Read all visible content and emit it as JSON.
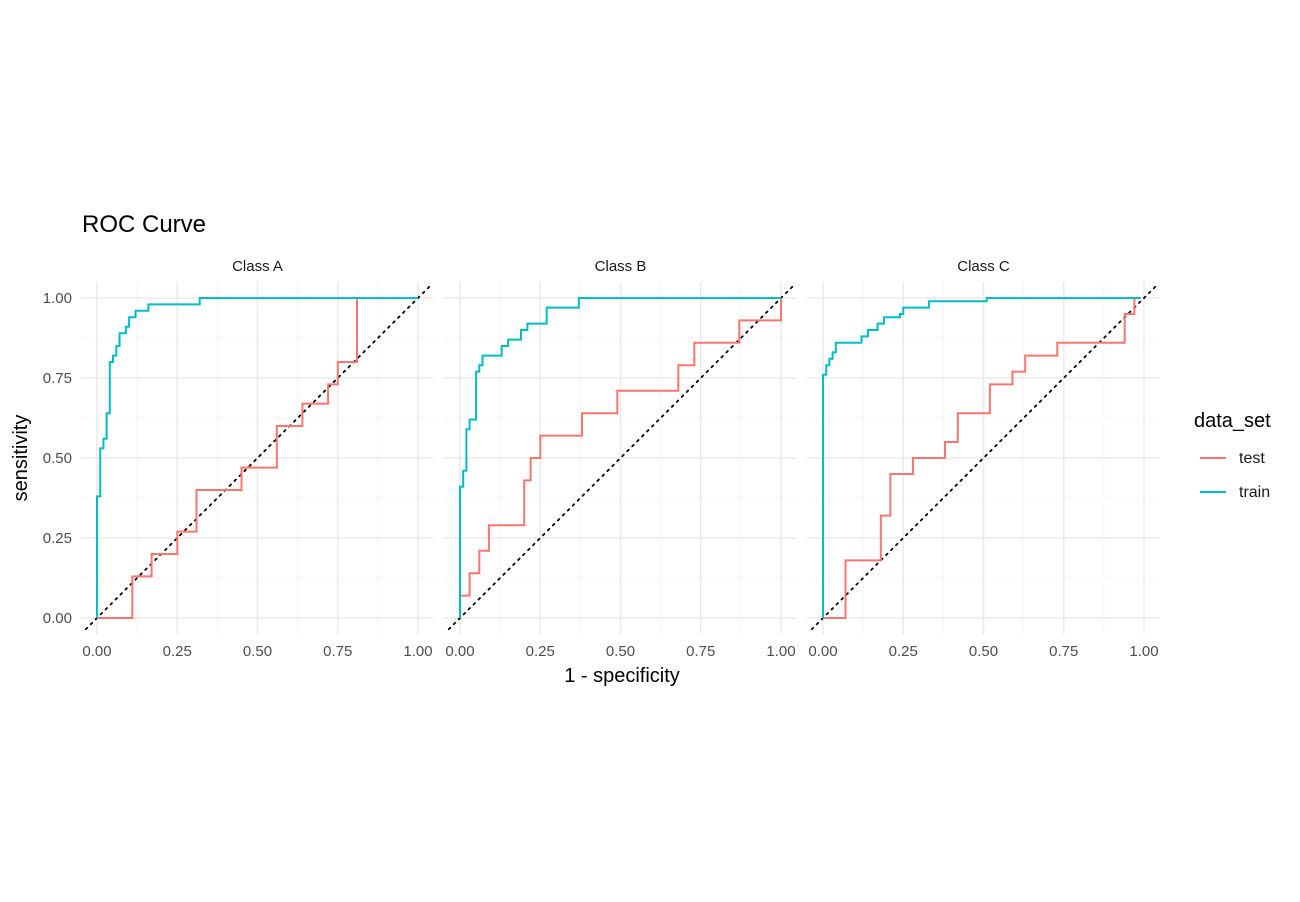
{
  "chart_data": {
    "type": "line",
    "title": "ROC Curve",
    "xlabel": "1 - specificity",
    "ylabel": "sensitivity",
    "xlim": [
      0,
      1
    ],
    "ylim": [
      0,
      1
    ],
    "x_ticks": [
      "0.00",
      "0.25",
      "0.50",
      "0.75",
      "1.00"
    ],
    "y_ticks": [
      "0.00",
      "0.25",
      "0.50",
      "0.75",
      "1.00"
    ],
    "grid": true,
    "reference_line": "diagonal y = x (dotted)",
    "legend": {
      "title": "data_set",
      "position": "right",
      "entries": [
        {
          "name": "test",
          "color": "#F8766D"
        },
        {
          "name": "train",
          "color": "#00BFC4"
        }
      ]
    },
    "panels": [
      {
        "label": "Class A",
        "series": [
          {
            "name": "train",
            "color": "#00BFC4",
            "x": [
              0,
              0,
              0.01,
              0.01,
              0.02,
              0.02,
              0.03,
              0.03,
              0.04,
              0.04,
              0.05,
              0.05,
              0.06,
              0.06,
              0.07,
              0.07,
              0.09,
              0.09,
              0.1,
              0.1,
              0.12,
              0.12,
              0.16,
              0.16,
              0.32,
              0.32,
              1.0
            ],
            "y": [
              0,
              0.38,
              0.38,
              0.53,
              0.53,
              0.56,
              0.56,
              0.64,
              0.64,
              0.8,
              0.8,
              0.82,
              0.82,
              0.85,
              0.85,
              0.89,
              0.89,
              0.91,
              0.91,
              0.94,
              0.94,
              0.96,
              0.96,
              0.98,
              0.98,
              1.0,
              1.0
            ]
          },
          {
            "name": "test",
            "color": "#F8766D",
            "x": [
              0,
              0.11,
              0.11,
              0.17,
              0.17,
              0.25,
              0.25,
              0.31,
              0.31,
              0.45,
              0.45,
              0.56,
              0.56,
              0.64,
              0.64,
              0.72,
              0.72,
              0.75,
              0.75,
              0.81,
              0.81
            ],
            "y": [
              0,
              0,
              0.13,
              0.13,
              0.2,
              0.2,
              0.27,
              0.27,
              0.4,
              0.4,
              0.47,
              0.47,
              0.6,
              0.6,
              0.67,
              0.67,
              0.73,
              0.73,
              0.8,
              0.8,
              1.0
            ]
          }
        ]
      },
      {
        "label": "Class B",
        "series": [
          {
            "name": "train",
            "color": "#00BFC4",
            "x": [
              0,
              0,
              0.01,
              0.01,
              0.02,
              0.02,
              0.03,
              0.03,
              0.05,
              0.05,
              0.06,
              0.06,
              0.07,
              0.07,
              0.13,
              0.13,
              0.15,
              0.15,
              0.19,
              0.19,
              0.21,
              0.21,
              0.27,
              0.27,
              0.37,
              0.37,
              1.0
            ],
            "y": [
              0,
              0.41,
              0.41,
              0.46,
              0.46,
              0.59,
              0.59,
              0.62,
              0.62,
              0.77,
              0.77,
              0.79,
              0.79,
              0.82,
              0.82,
              0.85,
              0.85,
              0.87,
              0.87,
              0.9,
              0.9,
              0.92,
              0.92,
              0.97,
              0.97,
              1.0,
              1.0
            ]
          },
          {
            "name": "test",
            "color": "#F8766D",
            "x": [
              0,
              0,
              0.03,
              0.03,
              0.06,
              0.06,
              0.09,
              0.09,
              0.2,
              0.2,
              0.22,
              0.22,
              0.25,
              0.25,
              0.38,
              0.38,
              0.49,
              0.49,
              0.68,
              0.68,
              0.73,
              0.73,
              0.87,
              0.87,
              1.0,
              1.0
            ],
            "y": [
              0,
              0.07,
              0.07,
              0.14,
              0.14,
              0.21,
              0.21,
              0.29,
              0.29,
              0.43,
              0.43,
              0.5,
              0.5,
              0.57,
              0.57,
              0.64,
              0.64,
              0.71,
              0.71,
              0.79,
              0.79,
              0.86,
              0.86,
              0.93,
              0.93,
              1.0
            ]
          }
        ]
      },
      {
        "label": "Class C",
        "series": [
          {
            "name": "train",
            "color": "#00BFC4",
            "x": [
              0,
              0,
              0.01,
              0.01,
              0.02,
              0.02,
              0.03,
              0.03,
              0.04,
              0.04,
              0.05,
              0.05,
              0.12,
              0.12,
              0.14,
              0.14,
              0.17,
              0.17,
              0.19,
              0.19,
              0.24,
              0.24,
              0.25,
              0.25,
              0.33,
              0.33,
              0.51,
              0.51,
              0.99,
              0.99
            ],
            "y": [
              0,
              0.76,
              0.76,
              0.79,
              0.79,
              0.81,
              0.81,
              0.83,
              0.83,
              0.86,
              0.86,
              0.86,
              0.86,
              0.88,
              0.88,
              0.9,
              0.9,
              0.92,
              0.92,
              0.94,
              0.94,
              0.95,
              0.95,
              0.97,
              0.97,
              0.99,
              0.99,
              1.0,
              1.0,
              1.0
            ]
          },
          {
            "name": "test",
            "color": "#F8766D",
            "x": [
              0,
              0.07,
              0.07,
              0.18,
              0.18,
              0.21,
              0.21,
              0.28,
              0.28,
              0.38,
              0.38,
              0.42,
              0.42,
              0.52,
              0.52,
              0.59,
              0.59,
              0.63,
              0.63,
              0.73,
              0.73,
              0.94,
              0.94,
              0.97,
              0.97
            ],
            "y": [
              0,
              0,
              0.18,
              0.18,
              0.32,
              0.32,
              0.45,
              0.45,
              0.5,
              0.5,
              0.55,
              0.55,
              0.64,
              0.64,
              0.73,
              0.73,
              0.77,
              0.77,
              0.82,
              0.82,
              0.86,
              0.86,
              0.95,
              0.95,
              1.0
            ]
          }
        ]
      }
    ]
  }
}
